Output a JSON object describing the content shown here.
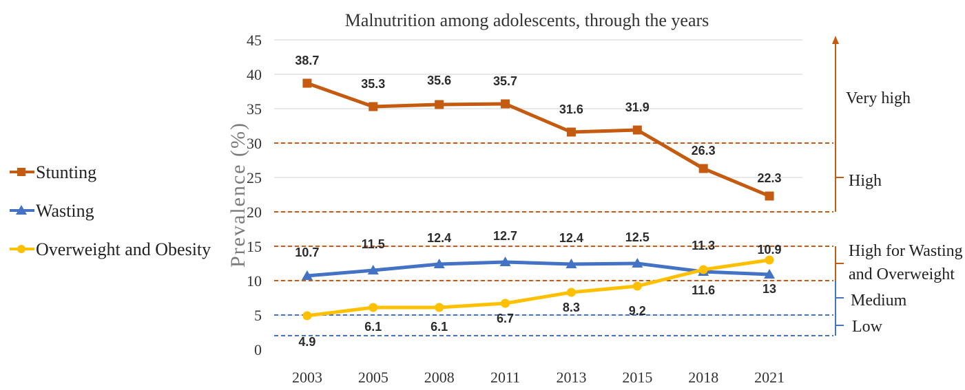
{
  "chart_data": {
    "type": "line",
    "title": "Malnutrition among adolescents, through the years",
    "ylabel": "Prevalence (%)",
    "xlabel": "",
    "categories": [
      "2003",
      "2005",
      "2008",
      "2011",
      "2013",
      "2015",
      "2018",
      "2021"
    ],
    "ylim": [
      0,
      45
    ],
    "yticks": [
      0,
      5,
      10,
      15,
      20,
      25,
      30,
      35,
      40,
      45
    ],
    "grid": true,
    "legend_position": "left",
    "series": [
      {
        "name": "Stunting",
        "color": "#c55a11",
        "marker": "square",
        "values": [
          38.7,
          35.3,
          35.6,
          35.7,
          31.6,
          31.9,
          26.3,
          22.3
        ],
        "labels": [
          "38.7",
          "35.3",
          "35.6",
          "35.7",
          "31.6",
          "31.9",
          "26.3",
          "22.3"
        ]
      },
      {
        "name": "Wasting",
        "color": "#4472c4",
        "marker": "triangle",
        "values": [
          10.7,
          11.5,
          12.4,
          12.7,
          12.4,
          12.5,
          11.3,
          10.9
        ],
        "labels": [
          "10.7",
          "11.5",
          "12.4",
          "12.7",
          "12.4",
          "12.5",
          "11.3",
          "10.9"
        ]
      },
      {
        "name": "Overweight and Obesity",
        "color": "#ffc000",
        "marker": "circle",
        "values": [
          4.9,
          6.1,
          6.1,
          6.7,
          8.3,
          9.2,
          11.6,
          13
        ],
        "labels": [
          "4.9",
          "6.1",
          "6.1",
          "6.7",
          "8.3",
          "9.2",
          "11.6",
          "13"
        ]
      }
    ],
    "thresholds": [
      {
        "value": 30,
        "color": "#c55a11"
      },
      {
        "value": 20,
        "color": "#c55a11"
      },
      {
        "value": 15,
        "color": "#c55a11"
      },
      {
        "value": 10,
        "color": "#c55a11"
      },
      {
        "value": 5,
        "color": "#4472c4"
      },
      {
        "value": 2,
        "color": "#4472c4"
      }
    ],
    "bands": [
      {
        "label": "Very high",
        "color": "#c55a11"
      },
      {
        "label": "High",
        "color": "#c55a11"
      },
      {
        "label": "High for Wasting",
        "label2": "and Overweight",
        "color": "#c55a11"
      },
      {
        "label": "Medium",
        "color": "#4472c4"
      },
      {
        "label": "Low",
        "color": "#4472c4"
      }
    ]
  }
}
